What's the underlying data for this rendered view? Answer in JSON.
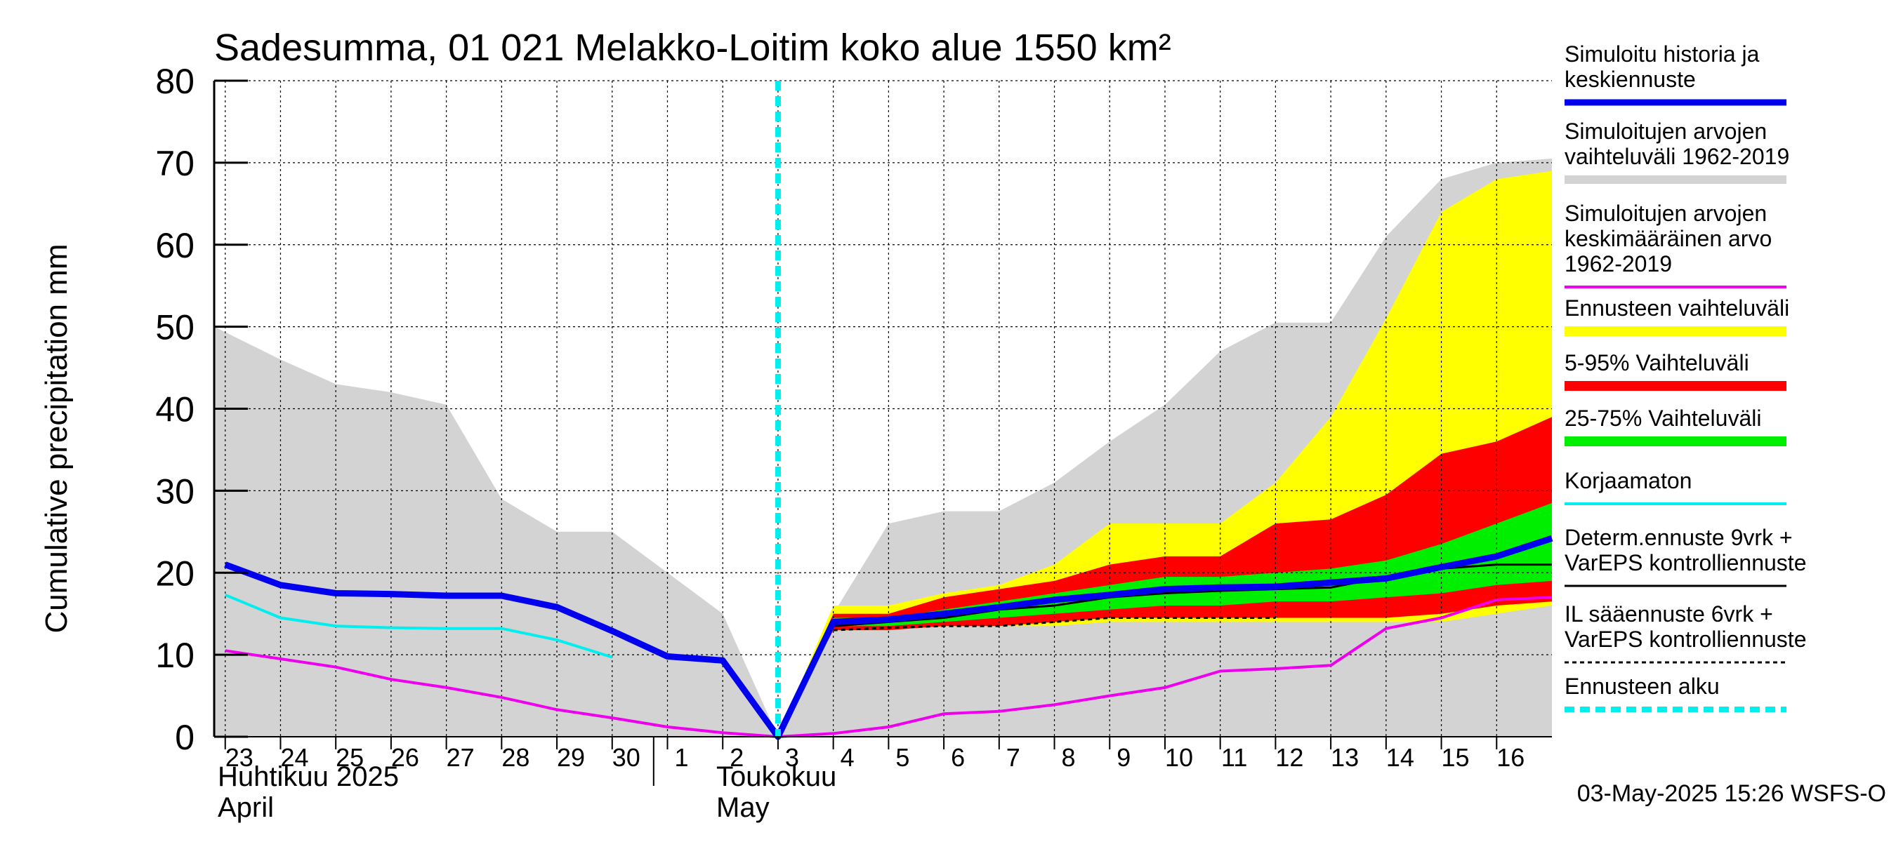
{
  "chart_data": {
    "type": "area",
    "title": "Sadesumma, 01 021 Melakko-Loitim koko alue 1550 km²",
    "ylabel": "Cumulative precipitation   mm",
    "xlabel": "",
    "ylim": [
      0,
      80
    ],
    "yticks": [
      0,
      10,
      20,
      30,
      40,
      50,
      60,
      70,
      80
    ],
    "x_domain": [
      -0.2,
      24.0
    ],
    "grid": true,
    "day_ticks": [
      "23",
      "24",
      "25",
      "26",
      "27",
      "28",
      "29",
      "30",
      "1",
      "2",
      "3",
      "4",
      "5",
      "6",
      "7",
      "8",
      "9",
      "10",
      "11",
      "12",
      "13",
      "14",
      "15",
      "16"
    ],
    "month_labels": {
      "april_fi": "Huhtikuu  2025",
      "april_en": "April",
      "may_fi": "Toukokuu",
      "may_en": "May"
    },
    "forecast_start_x": 10.0,
    "footer": "03-May-2025 15:26 WSFS-O",
    "colors": {
      "hist_range": "#d3d3d3",
      "ens_range": "#ffff00",
      "p5_95": "#ff0000",
      "p25_75": "#00ee00",
      "simulated": "#0000ee",
      "mean": "#ee00ee",
      "uncorrected": "#00eeee",
      "determ": "#000000",
      "il": "#000000",
      "start": "#00eeee"
    },
    "series": {
      "hist_range": {
        "x": [
          -0.2,
          1,
          2,
          3,
          4,
          5,
          6,
          7,
          8,
          9,
          10,
          11,
          12,
          13,
          14,
          15,
          16,
          17,
          18,
          19,
          20,
          21,
          22,
          23,
          24
        ],
        "upper": [
          50,
          46,
          43,
          42,
          40.5,
          29,
          25,
          25,
          20,
          15,
          0,
          15,
          26,
          27.5,
          27.5,
          31,
          36,
          40.5,
          47,
          50.5,
          50.5,
          61,
          68,
          70,
          70.5
        ],
        "lower": [
          0,
          0,
          0,
          0,
          0,
          0,
          0,
          0,
          0,
          0,
          0,
          0,
          0,
          0,
          0,
          0,
          0,
          0,
          0,
          0,
          0,
          0,
          0,
          0,
          0
        ]
      },
      "ens_range": {
        "x": [
          10,
          11,
          12,
          13,
          14,
          15,
          16,
          17,
          18,
          19,
          20,
          21,
          22,
          23,
          24
        ],
        "upper": [
          0,
          16,
          16,
          17.5,
          18.5,
          21,
          26,
          26,
          26,
          31,
          39,
          51,
          64,
          68,
          69
        ],
        "lower": [
          0,
          13,
          13,
          13.5,
          13.5,
          13.5,
          14,
          14,
          14,
          14,
          14,
          14,
          14,
          15,
          16
        ]
      },
      "p5_95": {
        "x": [
          10,
          11,
          12,
          13,
          14,
          15,
          16,
          17,
          18,
          19,
          20,
          21,
          22,
          23,
          24
        ],
        "upper": [
          0,
          15,
          15,
          17,
          18,
          19,
          21,
          22,
          22,
          26,
          26.5,
          29.5,
          34.5,
          36,
          39
        ],
        "lower": [
          0,
          13,
          13,
          13.5,
          13.5,
          14,
          14.5,
          14.5,
          14.5,
          14.5,
          14.5,
          14.5,
          15,
          16,
          16.5
        ]
      },
      "p25_75": {
        "x": [
          10,
          11,
          12,
          13,
          14,
          15,
          16,
          17,
          18,
          19,
          20,
          21,
          22,
          23,
          24
        ],
        "upper": [
          0,
          14.5,
          14.5,
          15.5,
          16.5,
          17.5,
          18.5,
          19.5,
          19.5,
          20,
          20.5,
          21.5,
          23.5,
          26,
          28.5
        ],
        "lower": [
          0,
          13.5,
          13.5,
          14,
          14.5,
          15,
          15.5,
          16,
          16,
          16.5,
          16.5,
          17,
          17.5,
          18.5,
          19
        ]
      },
      "mean": {
        "x": [
          0,
          1,
          2,
          3,
          4,
          5,
          6,
          7,
          8,
          9,
          10,
          11,
          12,
          13,
          14,
          15,
          16,
          17,
          18,
          19,
          20,
          21,
          22,
          23,
          24
        ],
        "y": [
          10.5,
          9.5,
          8.5,
          7,
          6,
          4.8,
          3.3,
          2.3,
          1.2,
          0.5,
          0,
          0.4,
          1.2,
          2.8,
          3.1,
          3.9,
          5,
          6,
          8,
          8.3,
          8.7,
          13.2,
          14.5,
          16.7,
          17
        ]
      },
      "uncorrected": {
        "x": [
          0,
          1,
          2,
          3,
          4,
          5,
          6,
          7
        ],
        "y": [
          17.3,
          14.5,
          13.5,
          13.3,
          13.2,
          13.2,
          11.8,
          9.7
        ]
      },
      "determ": {
        "x": [
          10,
          11,
          12,
          13,
          14,
          15,
          16,
          17,
          18,
          19,
          20,
          21,
          22,
          23,
          24
        ],
        "y": [
          0,
          13.5,
          14,
          14.5,
          15.5,
          16,
          17,
          17.5,
          17.8,
          18,
          18.2,
          19.5,
          20.5,
          21,
          21
        ]
      },
      "il": {
        "x": [
          11,
          12,
          13,
          14,
          15,
          16,
          17,
          18,
          19
        ],
        "y": [
          13,
          13.3,
          13.5,
          13.5,
          14,
          14.5,
          14.5,
          14.5,
          14.5
        ]
      },
      "simulated": {
        "x": [
          0,
          1,
          2,
          3,
          4,
          5,
          6,
          7,
          8,
          9,
          10,
          11,
          12,
          13,
          14,
          15,
          16,
          17,
          18,
          19,
          20,
          21,
          22,
          23,
          24
        ],
        "y": [
          21,
          18.5,
          17.5,
          17.4,
          17.2,
          17.2,
          15.8,
          12.9,
          9.8,
          9.3,
          0,
          14,
          14.3,
          15,
          15.8,
          16.7,
          17.3,
          18,
          18.2,
          18.3,
          18.8,
          19.3,
          20.7,
          22,
          24.2
        ]
      }
    },
    "legend": [
      {
        "key": "simulated",
        "lines": [
          "Simuloitu historia ja",
          "keskiennuste"
        ]
      },
      {
        "key": "hist_range",
        "lines": [
          "Simuloitujen arvojen",
          "vaihteluväli 1962-2019"
        ]
      },
      {
        "key": "mean",
        "lines": [
          "Simuloitujen arvojen",
          "keskimääräinen arvo",
          "   1962-2019"
        ]
      },
      {
        "key": "ens_range",
        "lines": [
          "Ennusteen vaihteluväli"
        ]
      },
      {
        "key": "p5_95",
        "lines": [
          "5-95% Vaihteluväli"
        ]
      },
      {
        "key": "p25_75",
        "lines": [
          "25-75% Vaihteluväli"
        ]
      },
      {
        "key": "uncorrected",
        "lines": [
          "Korjaamaton"
        ]
      },
      {
        "key": "determ",
        "lines": [
          "Determ.ennuste 9vrk +",
          "VarEPS kontrolliennuste"
        ]
      },
      {
        "key": "il",
        "lines": [
          "IL sääennuste 6vrk  +",
          "  VarEPS kontrolliennuste"
        ]
      },
      {
        "key": "start",
        "lines": [
          "Ennusteen alku"
        ]
      }
    ]
  }
}
